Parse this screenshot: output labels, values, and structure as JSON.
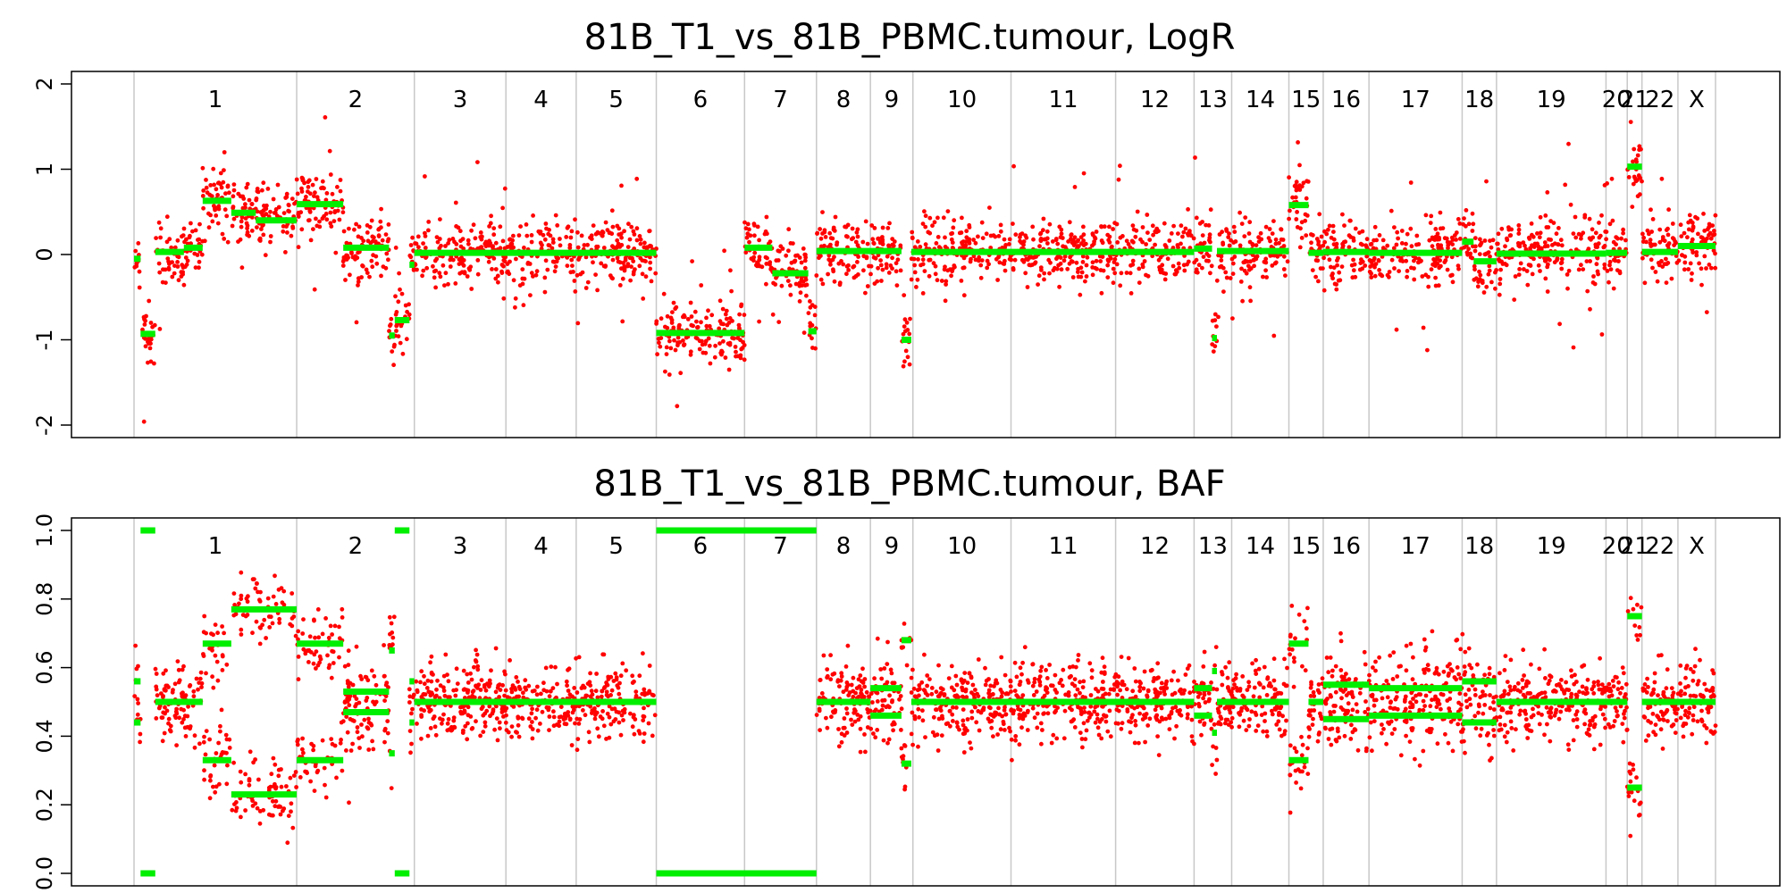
{
  "chrom_names": [
    "1",
    "2",
    "3",
    "4",
    "5",
    "6",
    "7",
    "8",
    "9",
    "10",
    "11",
    "12",
    "13",
    "14",
    "15",
    "16",
    "17",
    "18",
    "19",
    "20",
    "21",
    "22",
    "X"
  ],
  "colors": {
    "points": "#ff0000",
    "segments": "#00ee00",
    "boundary": "#c8c8c8",
    "frame": "#000000"
  },
  "chart_data": [
    {
      "type": "scatter",
      "title": "81B_T1_vs_81B_PBMC.tumour, LogR",
      "xlabel": "",
      "ylabel": "",
      "ylim": [
        -2,
        2
      ],
      "yticks": [
        -2,
        -1,
        0,
        1,
        2
      ],
      "ytick_labels": [
        "-2",
        "-1",
        "0",
        "1",
        "2"
      ],
      "grid": false,
      "x_unit": "chromosome position (start/end as fraction of genome)",
      "chromosomes": [
        {
          "name": "1",
          "start": 0.0,
          "end": 0.0995
        },
        {
          "name": "2",
          "start": 0.0995,
          "end": 0.1715
        },
        {
          "name": "3",
          "start": 0.1715,
          "end": 0.2275
        },
        {
          "name": "4",
          "start": 0.2275,
          "end": 0.2705
        },
        {
          "name": "5",
          "start": 0.2705,
          "end": 0.3195
        },
        {
          "name": "6",
          "start": 0.3195,
          "end": 0.3735
        },
        {
          "name": "7",
          "start": 0.3735,
          "end": 0.4175
        },
        {
          "name": "8",
          "start": 0.4175,
          "end": 0.4505
        },
        {
          "name": "9",
          "start": 0.4505,
          "end": 0.4765
        },
        {
          "name": "10",
          "start": 0.4765,
          "end": 0.5365
        },
        {
          "name": "11",
          "start": 0.5365,
          "end": 0.6005
        },
        {
          "name": "12",
          "start": 0.6005,
          "end": 0.6485
        },
        {
          "name": "13",
          "start": 0.6485,
          "end": 0.6715
        },
        {
          "name": "14",
          "start": 0.6715,
          "end": 0.7065
        },
        {
          "name": "15",
          "start": 0.7065,
          "end": 0.7275
        },
        {
          "name": "16",
          "start": 0.7275,
          "end": 0.7555
        },
        {
          "name": "17",
          "start": 0.7555,
          "end": 0.8125
        },
        {
          "name": "18",
          "start": 0.8125,
          "end": 0.8335
        },
        {
          "name": "19",
          "start": 0.8335,
          "end": 0.9005
        },
        {
          "name": "20",
          "start": 0.9005,
          "end": 0.9135
        },
        {
          "name": "21",
          "start": 0.9135,
          "end": 0.9225
        },
        {
          "name": "22",
          "start": 0.9225,
          "end": 0.9445
        },
        {
          "name": "X",
          "start": 0.9445,
          "end": 0.9675
        }
      ],
      "segments": [
        {
          "start": 0.0,
          "end": 0.004,
          "value": -0.05
        },
        {
          "start": 0.004,
          "end": 0.013,
          "value": -0.93
        },
        {
          "start": 0.013,
          "end": 0.0305,
          "value": 0.03
        },
        {
          "start": 0.0305,
          "end": 0.042,
          "value": 0.08
        },
        {
          "start": 0.042,
          "end": 0.0595,
          "value": 0.63
        },
        {
          "start": 0.0595,
          "end": 0.0745,
          "value": 0.49
        },
        {
          "start": 0.0745,
          "end": 0.0995,
          "value": 0.4
        },
        {
          "start": 0.0995,
          "end": 0.128,
          "value": 0.59
        },
        {
          "start": 0.128,
          "end": 0.156,
          "value": 0.08
        },
        {
          "start": 0.156,
          "end": 0.1595,
          "value": -0.95
        },
        {
          "start": 0.1595,
          "end": 0.1685,
          "value": -0.77
        },
        {
          "start": 0.1685,
          "end": 0.1715,
          "value": -0.12
        },
        {
          "start": 0.1715,
          "end": 0.3195,
          "value": 0.02
        },
        {
          "start": 0.3195,
          "end": 0.3735,
          "value": -0.92
        },
        {
          "start": 0.3735,
          "end": 0.3905,
          "value": 0.08
        },
        {
          "start": 0.3905,
          "end": 0.4125,
          "value": -0.22
        },
        {
          "start": 0.4125,
          "end": 0.4175,
          "value": -0.9
        },
        {
          "start": 0.4175,
          "end": 0.4695,
          "value": 0.04
        },
        {
          "start": 0.4695,
          "end": 0.4755,
          "value": -1.0
        },
        {
          "start": 0.4755,
          "end": 0.6485,
          "value": 0.03
        },
        {
          "start": 0.6485,
          "end": 0.6595,
          "value": 0.07
        },
        {
          "start": 0.6595,
          "end": 0.6625,
          "value": -0.98
        },
        {
          "start": 0.6625,
          "end": 0.7065,
          "value": 0.04
        },
        {
          "start": 0.7065,
          "end": 0.7185,
          "value": 0.58
        },
        {
          "start": 0.7185,
          "end": 0.7275,
          "value": 0.02
        },
        {
          "start": 0.7275,
          "end": 0.7555,
          "value": 0.03
        },
        {
          "start": 0.7555,
          "end": 0.8125,
          "value": 0.02
        },
        {
          "start": 0.8125,
          "end": 0.8195,
          "value": 0.15
        },
        {
          "start": 0.8195,
          "end": 0.8335,
          "value": -0.08
        },
        {
          "start": 0.8335,
          "end": 0.9005,
          "value": 0.01
        },
        {
          "start": 0.9005,
          "end": 0.9135,
          "value": 0.02
        },
        {
          "start": 0.9135,
          "end": 0.9225,
          "value": 1.03
        },
        {
          "start": 0.9225,
          "end": 0.9445,
          "value": 0.03
        },
        {
          "start": 0.9445,
          "end": 0.9675,
          "value": 0.1
        }
      ],
      "point_noise": 0.19
    },
    {
      "type": "scatter",
      "title": "81B_T1_vs_81B_PBMC.tumour, BAF",
      "xlabel": "",
      "ylabel": "",
      "ylim": [
        0,
        1
      ],
      "yticks": [
        0,
        0.2,
        0.4,
        0.6,
        0.8,
        1.0
      ],
      "ytick_labels": [
        "0.0",
        "0.2",
        "0.4",
        "0.6",
        "0.8",
        "1.0"
      ],
      "grid": false,
      "segments": [
        {
          "start": 0.0,
          "end": 0.004,
          "values": [
            0.44,
            0.56
          ]
        },
        {
          "start": 0.004,
          "end": 0.013,
          "values": [
            0.0,
            1.0
          ]
        },
        {
          "start": 0.013,
          "end": 0.042,
          "values": [
            0.5
          ]
        },
        {
          "start": 0.042,
          "end": 0.0595,
          "values": [
            0.33,
            0.67
          ]
        },
        {
          "start": 0.0595,
          "end": 0.0995,
          "values": [
            0.23,
            0.77
          ]
        },
        {
          "start": 0.0995,
          "end": 0.128,
          "values": [
            0.33,
            0.67
          ]
        },
        {
          "start": 0.128,
          "end": 0.156,
          "values": [
            0.47,
            0.53
          ]
        },
        {
          "start": 0.156,
          "end": 0.1595,
          "values": [
            0.35,
            0.65
          ]
        },
        {
          "start": 0.1595,
          "end": 0.1685,
          "values": [
            0.0,
            1.0
          ]
        },
        {
          "start": 0.1685,
          "end": 0.1715,
          "values": [
            0.44,
            0.56
          ]
        },
        {
          "start": 0.1715,
          "end": 0.3195,
          "values": [
            0.5
          ]
        },
        {
          "start": 0.3195,
          "end": 0.4175,
          "values": [
            0.0,
            1.0
          ]
        },
        {
          "start": 0.4175,
          "end": 0.4505,
          "values": [
            0.5
          ]
        },
        {
          "start": 0.4505,
          "end": 0.4695,
          "values": [
            0.46,
            0.54
          ]
        },
        {
          "start": 0.4695,
          "end": 0.4755,
          "values": [
            0.32,
            0.68
          ]
        },
        {
          "start": 0.4755,
          "end": 0.6485,
          "values": [
            0.5
          ]
        },
        {
          "start": 0.6485,
          "end": 0.6595,
          "values": [
            0.46,
            0.54
          ]
        },
        {
          "start": 0.6595,
          "end": 0.6625,
          "values": [
            0.41,
            0.59
          ]
        },
        {
          "start": 0.6625,
          "end": 0.7065,
          "values": [
            0.5
          ]
        },
        {
          "start": 0.7065,
          "end": 0.7185,
          "values": [
            0.33,
            0.67
          ]
        },
        {
          "start": 0.7185,
          "end": 0.7275,
          "values": [
            0.5
          ]
        },
        {
          "start": 0.7275,
          "end": 0.7555,
          "values": [
            0.45,
            0.55
          ]
        },
        {
          "start": 0.7555,
          "end": 0.8125,
          "values": [
            0.46,
            0.54
          ]
        },
        {
          "start": 0.8125,
          "end": 0.8335,
          "values": [
            0.44,
            0.56
          ]
        },
        {
          "start": 0.8335,
          "end": 0.9005,
          "values": [
            0.5
          ]
        },
        {
          "start": 0.9005,
          "end": 0.9135,
          "values": [
            0.5
          ]
        },
        {
          "start": 0.9135,
          "end": 0.9225,
          "values": [
            0.25,
            0.75
          ]
        },
        {
          "start": 0.9225,
          "end": 0.9675,
          "values": [
            0.5
          ]
        }
      ],
      "point_noise": 0.055
    }
  ]
}
